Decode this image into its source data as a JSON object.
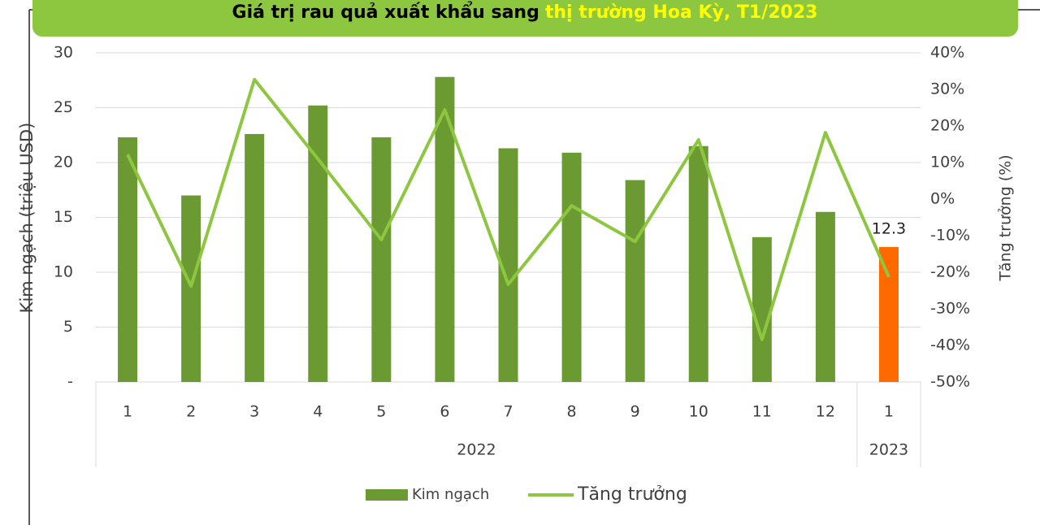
{
  "chart_data": {
    "type": "bar_line",
    "title_parts": [
      "Giá trị  rau quả xuất khẩu sang",
      "thị trường Hoa Kỳ, T1/2023"
    ],
    "y_label": "Kim ngạch (triệu USD)",
    "y2_label": "Tăng trưởng (%)",
    "categories": [
      "1",
      "2",
      "3",
      "4",
      "5",
      "6",
      "7",
      "8",
      "9",
      "10",
      "11",
      "12",
      "1"
    ],
    "groups": [
      {
        "label": "2022",
        "span": 12
      },
      {
        "label": "2023",
        "span": 1
      }
    ],
    "series": [
      {
        "name": "Kim ngạch",
        "type": "bar",
        "color": "#6b9a32",
        "colors": [
          "#6b9a32",
          "#6b9a32",
          "#6b9a32",
          "#6b9a32",
          "#6b9a32",
          "#6b9a32",
          "#6b9a32",
          "#6b9a32",
          "#6b9a32",
          "#6b9a32",
          "#6b9a32",
          "#6b9a32",
          "#ff6a00"
        ],
        "values": [
          22.3,
          17.0,
          22.6,
          25.2,
          22.3,
          27.8,
          21.3,
          20.9,
          18.4,
          21.5,
          13.2,
          15.5,
          12.3
        ],
        "value_labels": [
          null,
          null,
          null,
          null,
          null,
          null,
          null,
          null,
          null,
          null,
          null,
          null,
          "12.3"
        ]
      },
      {
        "name": "Tăng trưởng",
        "type": "line",
        "axis": "y2",
        "color": "#8dc63f",
        "values": [
          12.2,
          -23.8,
          32.7,
          11,
          -11.1,
          24.4,
          -23.3,
          -1.8,
          -11.6,
          16.2,
          -38.4,
          18.2,
          -21.3
        ]
      }
    ],
    "ylim": [
      0,
      30
    ],
    "yticks": [
      {
        "value": 0,
        "label": "-"
      },
      5,
      10,
      15,
      20,
      25,
      30
    ],
    "y2lim": [
      -50,
      40
    ],
    "y2ticks": [
      {
        "value": -50,
        "label": "-50%"
      },
      {
        "value": -40,
        "label": "-40%"
      },
      {
        "value": -30,
        "label": "-30%"
      },
      {
        "value": -20,
        "label": "-20%"
      },
      {
        "value": -10,
        "label": "-10%"
      },
      {
        "value": 0,
        "label": "0%"
      },
      {
        "value": 10,
        "label": "10%"
      },
      {
        "value": 20,
        "label": "20%"
      },
      {
        "value": 30,
        "label": "30%"
      },
      {
        "value": 40,
        "label": "40%"
      }
    ],
    "grid": true
  }
}
